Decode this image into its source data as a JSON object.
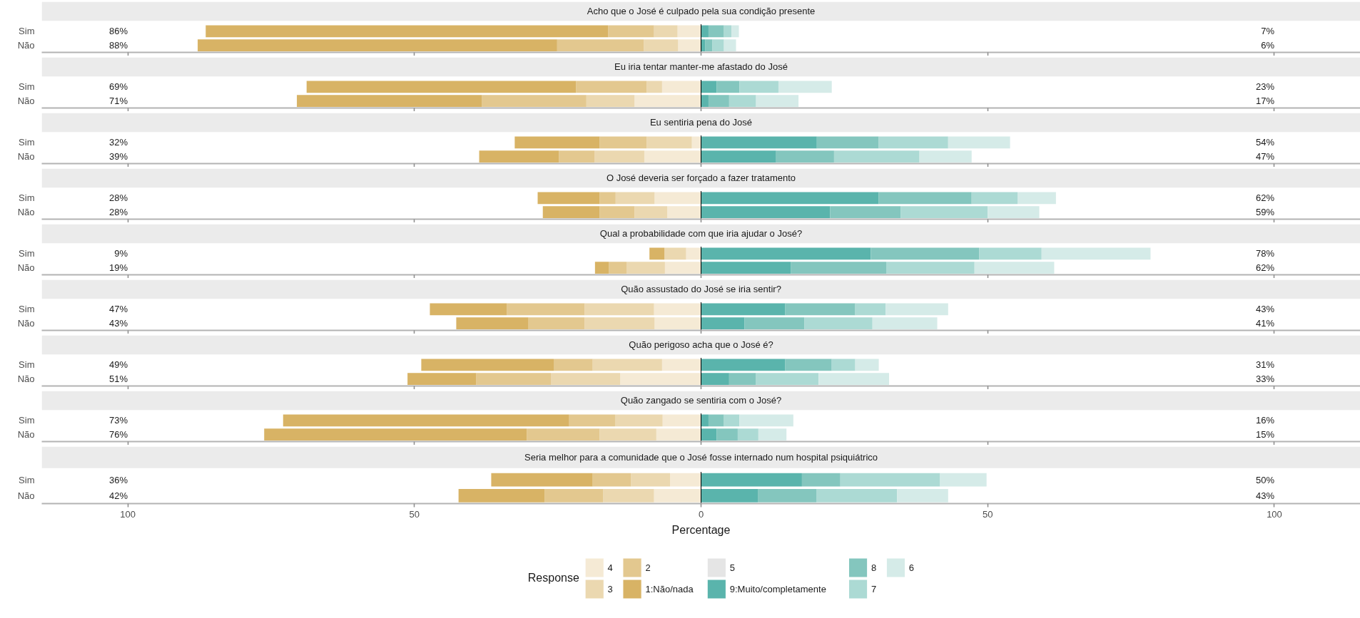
{
  "chart_data": [
    {
      "type": "bar",
      "orientation": "horizontal",
      "stacked": true,
      "title": "Acho que o José é culpado pela sua condição presente",
      "categories": [
        "Sim",
        "Não"
      ],
      "xlim": [
        -115,
        115
      ],
      "xticks": [
        {
          "value": -100,
          "label": null
        },
        {
          "value": -50,
          "label": null
        },
        {
          "value": 0,
          "label": null
        },
        {
          "value": 50,
          "label": null
        },
        {
          "value": 100,
          "label": null
        }
      ],
      "tick_labels": "y",
      "ref_lines": [
        {
          "axis": "x",
          "value": 0,
          "color": "#000000"
        }
      ],
      "totals": [
        [
          "86%",
          "7%"
        ],
        [
          "88%",
          "6%"
        ]
      ],
      "series": [
        {
          "color": "#f5ead5",
          "values": [
            -4.1,
            -4.0
          ]
        },
        {
          "color": "#ebd8b0",
          "values": [
            -4.1,
            -6.0
          ]
        },
        {
          "color": "#e3c88f",
          "values": [
            -8.0,
            -15.1
          ]
        },
        {
          "color": "#d8b365",
          "values": [
            -70.2,
            -62.7
          ]
        },
        {
          "color": "#5ab4ac",
          "values": [
            1.3,
            0.7
          ]
        },
        {
          "color": "#84c6be",
          "values": [
            2.7,
            1.3
          ]
        },
        {
          "color": "#acdad4",
          "values": [
            1.3,
            2.0
          ]
        },
        {
          "color": "#d5ebe8",
          "values": [
            1.3,
            2.1
          ]
        }
      ]
    },
    {
      "type": "bar",
      "orientation": "horizontal",
      "stacked": true,
      "title": "Eu iria tentar manter-me afastado do José",
      "categories": [
        "Sim",
        "Não"
      ],
      "xlim": [
        -115,
        115
      ],
      "xticks": [
        {
          "value": -100,
          "label": null
        },
        {
          "value": -50,
          "label": null
        },
        {
          "value": 0,
          "label": null
        },
        {
          "value": 50,
          "label": null
        },
        {
          "value": 100,
          "label": null
        }
      ],
      "tick_labels": "y",
      "ref_lines": [
        {
          "axis": "x",
          "value": 0,
          "color": "#000000"
        }
      ],
      "totals": [
        [
          "69%",
          "23%"
        ],
        [
          "71%",
          "17%"
        ]
      ],
      "series": [
        {
          "color": "#f5ead5",
          "values": [
            -6.8,
            -11.6
          ]
        },
        {
          "color": "#ebd8b0",
          "values": [
            -2.7,
            -8.4
          ]
        },
        {
          "color": "#e3c88f",
          "values": [
            -12.3,
            -18.2
          ]
        },
        {
          "color": "#d8b365",
          "values": [
            -47.0,
            -32.3
          ]
        },
        {
          "color": "#5ab4ac",
          "values": [
            2.7,
            1.3
          ]
        },
        {
          "color": "#84c6be",
          "values": [
            4.0,
            3.6
          ]
        },
        {
          "color": "#acdad4",
          "values": [
            6.8,
            4.7
          ]
        },
        {
          "color": "#d5ebe8",
          "values": [
            9.3,
            7.4
          ]
        }
      ]
    },
    {
      "type": "bar",
      "orientation": "horizontal",
      "stacked": true,
      "title": "Eu sentiria pena do José",
      "categories": [
        "Sim",
        "Não"
      ],
      "xlim": [
        -115,
        115
      ],
      "xticks": [
        {
          "value": -100,
          "label": null
        },
        {
          "value": -50,
          "label": null
        },
        {
          "value": 0,
          "label": null
        },
        {
          "value": 50,
          "label": null
        },
        {
          "value": 100,
          "label": null
        }
      ],
      "tick_labels": "y",
      "ref_lines": [
        {
          "axis": "x",
          "value": 0,
          "color": "#000000"
        }
      ],
      "totals": [
        [
          "32%",
          "54%"
        ],
        [
          "39%",
          "47%"
        ]
      ],
      "series": [
        {
          "color": "#f5ead5",
          "values": [
            -1.6,
            -9.9
          ]
        },
        {
          "color": "#ebd8b0",
          "values": [
            -7.9,
            -8.7
          ]
        },
        {
          "color": "#e3c88f",
          "values": [
            -8.2,
            -6.2
          ]
        },
        {
          "color": "#d8b365",
          "values": [
            -14.8,
            -13.9
          ]
        },
        {
          "color": "#5ab4ac",
          "values": [
            20.2,
            13.1
          ]
        },
        {
          "color": "#84c6be",
          "values": [
            10.8,
            10.1
          ]
        },
        {
          "color": "#acdad4",
          "values": [
            12.1,
            14.9
          ]
        },
        {
          "color": "#d5ebe8",
          "values": [
            10.8,
            9.1
          ]
        }
      ]
    },
    {
      "type": "bar",
      "orientation": "horizontal",
      "stacked": true,
      "title": "O José deveria ser forçado a fazer tratamento",
      "categories": [
        "Sim",
        "Não"
      ],
      "xlim": [
        -115,
        115
      ],
      "xticks": [
        {
          "value": -100,
          "label": null
        },
        {
          "value": -50,
          "label": null
        },
        {
          "value": 0,
          "label": null
        },
        {
          "value": 50,
          "label": null
        },
        {
          "value": 100,
          "label": null
        }
      ],
      "tick_labels": "y",
      "ref_lines": [
        {
          "axis": "x",
          "value": 0,
          "color": "#000000"
        }
      ],
      "totals": [
        [
          "28%",
          "62%"
        ],
        [
          "28%",
          "59%"
        ]
      ],
      "series": [
        {
          "color": "#f5ead5",
          "values": [
            -8.1,
            -5.9
          ]
        },
        {
          "color": "#ebd8b0",
          "values": [
            -6.8,
            -5.7
          ]
        },
        {
          "color": "#e3c88f",
          "values": [
            -2.8,
            -6.1
          ]
        },
        {
          "color": "#d8b365",
          "values": [
            -10.8,
            -9.9
          ]
        },
        {
          "color": "#5ab4ac",
          "values": [
            31.0,
            22.5
          ]
        },
        {
          "color": "#84c6be",
          "values": [
            16.2,
            12.3
          ]
        },
        {
          "color": "#acdad4",
          "values": [
            8.0,
            15.2
          ]
        },
        {
          "color": "#d5ebe8",
          "values": [
            6.7,
            9.0
          ]
        }
      ]
    },
    {
      "type": "bar",
      "orientation": "horizontal",
      "stacked": true,
      "title": "Qual a probabilidade com que iria ajudar o José?",
      "categories": [
        "Sim",
        "Não"
      ],
      "xlim": [
        -115,
        115
      ],
      "xticks": [
        {
          "value": -100,
          "label": null
        },
        {
          "value": -50,
          "label": null
        },
        {
          "value": 0,
          "label": null
        },
        {
          "value": 50,
          "label": null
        },
        {
          "value": 100,
          "label": null
        }
      ],
      "tick_labels": "y",
      "ref_lines": [
        {
          "axis": "x",
          "value": 0,
          "color": "#000000"
        }
      ],
      "totals": [
        [
          "9%",
          "78%"
        ],
        [
          "19%",
          "62%"
        ]
      ],
      "series": [
        {
          "color": "#f5ead5",
          "values": [
            -2.6,
            -6.3
          ]
        },
        {
          "color": "#ebd8b0",
          "values": [
            -3.8,
            -6.7
          ]
        },
        {
          "color": "#e3c88f",
          "values": [
            null,
            -3.1
          ]
        },
        {
          "color": "#d8b365",
          "values": [
            -2.6,
            -2.4
          ]
        },
        {
          "color": "#5ab4ac",
          "values": [
            29.6,
            15.7
          ]
        },
        {
          "color": "#84c6be",
          "values": [
            18.9,
            16.6
          ]
        },
        {
          "color": "#acdad4",
          "values": [
            10.9,
            15.4
          ]
        },
        {
          "color": "#d5ebe8",
          "values": [
            19.0,
            13.9
          ]
        }
      ]
    },
    {
      "type": "bar",
      "orientation": "horizontal",
      "stacked": true,
      "title": "Quão assustado do José se iria sentir?",
      "categories": [
        "Sim",
        "Não"
      ],
      "xlim": [
        -115,
        115
      ],
      "xticks": [
        {
          "value": -100,
          "label": null
        },
        {
          "value": -50,
          "label": null
        },
        {
          "value": 0,
          "label": null
        },
        {
          "value": 50,
          "label": null
        },
        {
          "value": 100,
          "label": null
        }
      ],
      "tick_labels": "y",
      "ref_lines": [
        {
          "axis": "x",
          "value": 0,
          "color": "#000000"
        }
      ],
      "totals": [
        [
          "47%",
          "43%"
        ],
        [
          "43%",
          "41%"
        ]
      ],
      "series": [
        {
          "color": "#f5ead5",
          "values": [
            -8.2,
            -8.1
          ]
        },
        {
          "color": "#ebd8b0",
          "values": [
            -12.1,
            -12.2
          ]
        },
        {
          "color": "#e3c88f",
          "values": [
            -13.6,
            -9.8
          ]
        },
        {
          "color": "#d8b365",
          "values": [
            -13.4,
            -12.6
          ]
        },
        {
          "color": "#5ab4ac",
          "values": [
            14.7,
            7.6
          ]
        },
        {
          "color": "#84c6be",
          "values": [
            12.2,
            10.4
          ]
        },
        {
          "color": "#acdad4",
          "values": [
            5.3,
            11.9
          ]
        },
        {
          "color": "#d5ebe8",
          "values": [
            10.9,
            11.3
          ]
        }
      ]
    },
    {
      "type": "bar",
      "orientation": "horizontal",
      "stacked": true,
      "title": "Quão perigoso acha que o José é?",
      "categories": [
        "Sim",
        "Não"
      ],
      "xlim": [
        -115,
        115
      ],
      "xticks": [
        {
          "value": -100,
          "label": null
        },
        {
          "value": -50,
          "label": null
        },
        {
          "value": 0,
          "label": null
        },
        {
          "value": 50,
          "label": null
        },
        {
          "value": 100,
          "label": null
        }
      ],
      "tick_labels": "y",
      "ref_lines": [
        {
          "axis": "x",
          "value": 0,
          "color": "#000000"
        }
      ],
      "totals": [
        [
          "49%",
          "31%"
        ],
        [
          "51%",
          "33%"
        ]
      ],
      "series": [
        {
          "color": "#f5ead5",
          "values": [
            -6.8,
            -14.1
          ]
        },
        {
          "color": "#ebd8b0",
          "values": [
            -12.1,
            -12.1
          ]
        },
        {
          "color": "#e3c88f",
          "values": [
            -6.8,
            -13.0
          ]
        },
        {
          "color": "#d8b365",
          "values": [
            -23.1,
            -12.0
          ]
        },
        {
          "color": "#5ab4ac",
          "values": [
            14.7,
            4.9
          ]
        },
        {
          "color": "#84c6be",
          "values": [
            8.1,
            4.7
          ]
        },
        {
          "color": "#acdad4",
          "values": [
            4.1,
            10.9
          ]
        },
        {
          "color": "#d5ebe8",
          "values": [
            4.1,
            12.3
          ]
        }
      ]
    },
    {
      "type": "bar",
      "orientation": "horizontal",
      "stacked": true,
      "title": "Quão zangado se sentiria com o José?",
      "categories": [
        "Sim",
        "Não"
      ],
      "xlim": [
        -115,
        115
      ],
      "xticks": [
        {
          "value": -100,
          "label": null
        },
        {
          "value": -50,
          "label": null
        },
        {
          "value": 0,
          "label": null
        },
        {
          "value": 50,
          "label": null
        },
        {
          "value": 100,
          "label": null
        }
      ],
      "tick_labels": "y",
      "ref_lines": [
        {
          "axis": "x",
          "value": 0,
          "color": "#000000"
        }
      ],
      "totals": [
        [
          "73%",
          "16%"
        ],
        [
          "76%",
          "15%"
        ]
      ],
      "series": [
        {
          "color": "#f5ead5",
          "values": [
            -6.7,
            -7.8
          ]
        },
        {
          "color": "#ebd8b0",
          "values": [
            -8.3,
            -9.9
          ]
        },
        {
          "color": "#e3c88f",
          "values": [
            -8.0,
            -12.7
          ]
        },
        {
          "color": "#d8b365",
          "values": [
            -49.9,
            -45.8
          ]
        },
        {
          "color": "#5ab4ac",
          "values": [
            1.3,
            2.7
          ]
        },
        {
          "color": "#84c6be",
          "values": [
            2.7,
            3.7
          ]
        },
        {
          "color": "#acdad4",
          "values": [
            2.7,
            3.6
          ]
        },
        {
          "color": "#d5ebe8",
          "values": [
            9.4,
            4.9
          ]
        }
      ]
    },
    {
      "type": "bar",
      "orientation": "horizontal",
      "stacked": true,
      "title": "Seria melhor para a comunidade que o José fosse internado num hospital psiquiátrico",
      "categories": [
        "Sim",
        "Não"
      ],
      "xlim": [
        -115,
        115
      ],
      "xticks": [
        {
          "value": -100,
          "label": "100"
        },
        {
          "value": -50,
          "label": "50"
        },
        0,
        50,
        100
      ],
      "xlabel": "Percentage",
      "legend": "bottom",
      "legend_title": "Response",
      "ref_lines": [
        {
          "axis": "x",
          "value": 0,
          "color": "#000000"
        }
      ],
      "totals": [
        [
          "36%",
          "50%"
        ],
        [
          "42%",
          "43%"
        ]
      ],
      "series": [
        {
          "name": "4",
          "color": "#f5ead5",
          "values": [
            -5.4,
            -8.2
          ]
        },
        {
          "name": "3",
          "color": "#ebd8b0",
          "values": [
            -6.8,
            -8.9
          ]
        },
        {
          "name": "2",
          "color": "#e3c88f",
          "values": [
            -6.7,
            -10.2
          ]
        },
        {
          "name": "1:Não/nada",
          "color": "#d8b365",
          "values": [
            -17.7,
            -15.0
          ]
        },
        {
          "name": "5",
          "color": "#e5e5e5",
          "values": [
            null,
            null
          ]
        },
        {
          "name": "9:Muito/completamente",
          "color": "#5ab4ac",
          "values": [
            17.6,
            9.9
          ]
        },
        {
          "name": "8",
          "color": "#84c6be",
          "values": [
            6.7,
            10.2
          ]
        },
        {
          "name": "7",
          "color": "#acdad4",
          "values": [
            17.4,
            14.1
          ]
        },
        {
          "name": "6",
          "color": "#d5ebe8",
          "values": [
            8.1,
            8.9
          ]
        }
      ]
    }
  ]
}
